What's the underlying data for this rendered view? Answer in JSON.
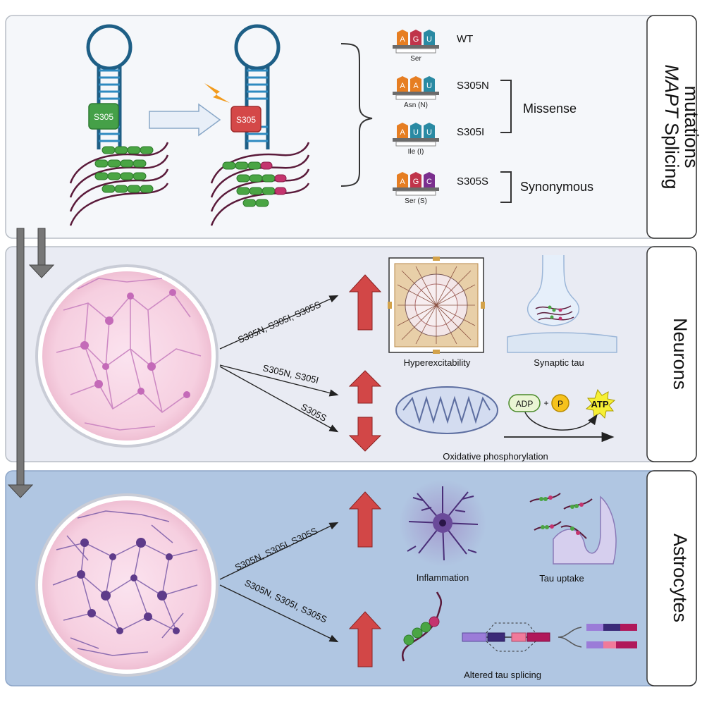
{
  "panel_mutations": {
    "title_italic": "MAPT",
    "title_rest": " Splicing",
    "title_line2": "mutations",
    "exon_badge_wt": "S305",
    "exon_badge_mut": "S305",
    "codons": [
      {
        "label": "WT",
        "bases": [
          "A",
          "G",
          "U"
        ],
        "amino": "Ser"
      },
      {
        "label": "S305N",
        "bases": [
          "A",
          "A",
          "U"
        ],
        "amino": "Asn (N)"
      },
      {
        "label": "S305I",
        "bases": [
          "A",
          "U",
          "U"
        ],
        "amino": "Ile (I)"
      },
      {
        "label": "S305S",
        "bases": [
          "A",
          "G",
          "C"
        ],
        "amino": "Ser (S)"
      }
    ],
    "group_missense": "Missense",
    "group_synonymous": "Synonymous",
    "colors": {
      "A": "#e67e22",
      "G": "#c0344a",
      "U": "#2a8aa3",
      "C": "#7b2f8e"
    }
  },
  "panel_neurons": {
    "title": "Neurons",
    "arrow1_label": "S305N, S305I, S305S",
    "arrow2_label": "S305N, S305I",
    "arrow3_label": "S305S",
    "hyperexcitability": "Hyperexcitability",
    "synaptic_tau": "Synaptic tau",
    "adp": "ADP",
    "plus": "+",
    "p": "P",
    "atp": "ATP",
    "oxphos": "Oxidative phosphorylation"
  },
  "panel_astrocytes": {
    "title": "Astrocytes",
    "arrow1_label": "S305N, S305I, S305S",
    "arrow2_label": "S305N, S305I, S305S",
    "inflammation": "Inflammation",
    "tau_uptake": "Tau uptake",
    "altered_splicing": "Altered tau splicing"
  }
}
